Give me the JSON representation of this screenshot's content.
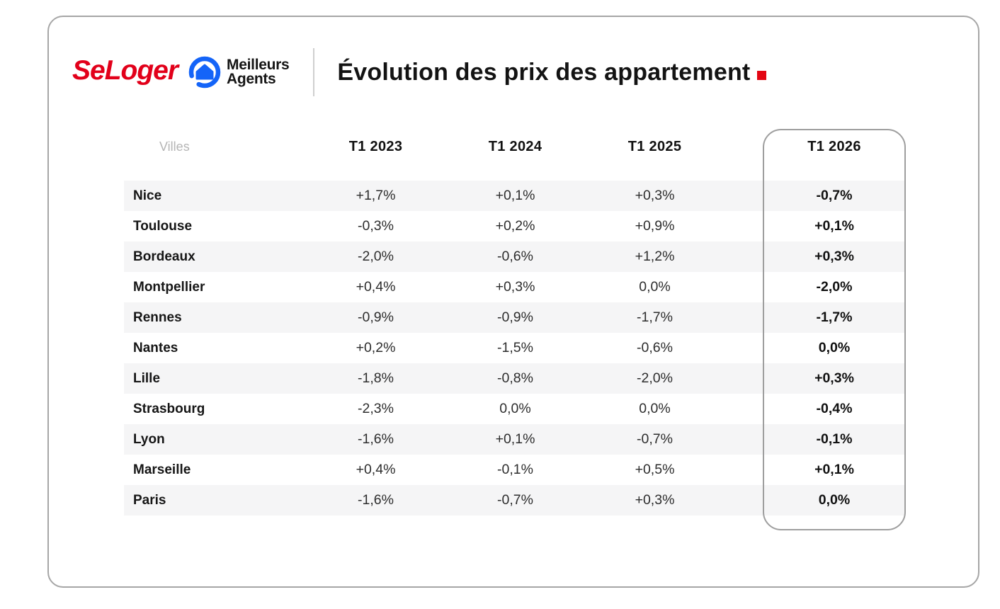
{
  "brand": {
    "seloger": "SeLoger",
    "ma_line1": "Meilleurs",
    "ma_line2": "Agents"
  },
  "title": {
    "text": "Évolution des prix des appartement"
  },
  "colors": {
    "brand_red": "#e2001a",
    "brand_blue": "#1464f8",
    "accent_red": "#e30613",
    "stripe_gray": "#f5f5f6",
    "border_gray": "#a6a6a6",
    "muted_gray": "#b5b5b5"
  },
  "chart_data": {
    "type": "table",
    "title": "Évolution des prix des appartement",
    "columns": [
      "Villes",
      "T1 2023",
      "T1 2024",
      "T1 2025",
      "T1 2026"
    ],
    "highlighted_column": "T1 2026",
    "rows": [
      {
        "city": "Nice",
        "values": [
          "+1,7%",
          "+0,1%",
          "+0,3%",
          "-0,7%"
        ]
      },
      {
        "city": "Toulouse",
        "values": [
          "-0,3%",
          "+0,2%",
          "+0,9%",
          "+0,1%"
        ]
      },
      {
        "city": "Bordeaux",
        "values": [
          "-2,0%",
          "-0,6%",
          "+1,2%",
          "+0,3%"
        ]
      },
      {
        "city": "Montpellier",
        "values": [
          "+0,4%",
          "+0,3%",
          "0,0%",
          "-2,0%"
        ]
      },
      {
        "city": "Rennes",
        "values": [
          "-0,9%",
          "-0,9%",
          "-1,7%",
          "-1,7%"
        ]
      },
      {
        "city": "Nantes",
        "values": [
          "+0,2%",
          "-1,5%",
          "-0,6%",
          "0,0%"
        ]
      },
      {
        "city": "Lille",
        "values": [
          "-1,8%",
          "-0,8%",
          "-2,0%",
          "+0,3%"
        ]
      },
      {
        "city": "Strasbourg",
        "values": [
          "-2,3%",
          "0,0%",
          "0,0%",
          "-0,4%"
        ]
      },
      {
        "city": "Lyon",
        "values": [
          "-1,6%",
          "+0,1%",
          "-0,7%",
          "-0,1%"
        ]
      },
      {
        "city": "Marseille",
        "values": [
          "+0,4%",
          "-0,1%",
          "+0,5%",
          "+0,1%"
        ]
      },
      {
        "city": "Paris",
        "values": [
          "-1,6%",
          "-0,7%",
          "+0,3%",
          "0,0%"
        ]
      }
    ]
  }
}
